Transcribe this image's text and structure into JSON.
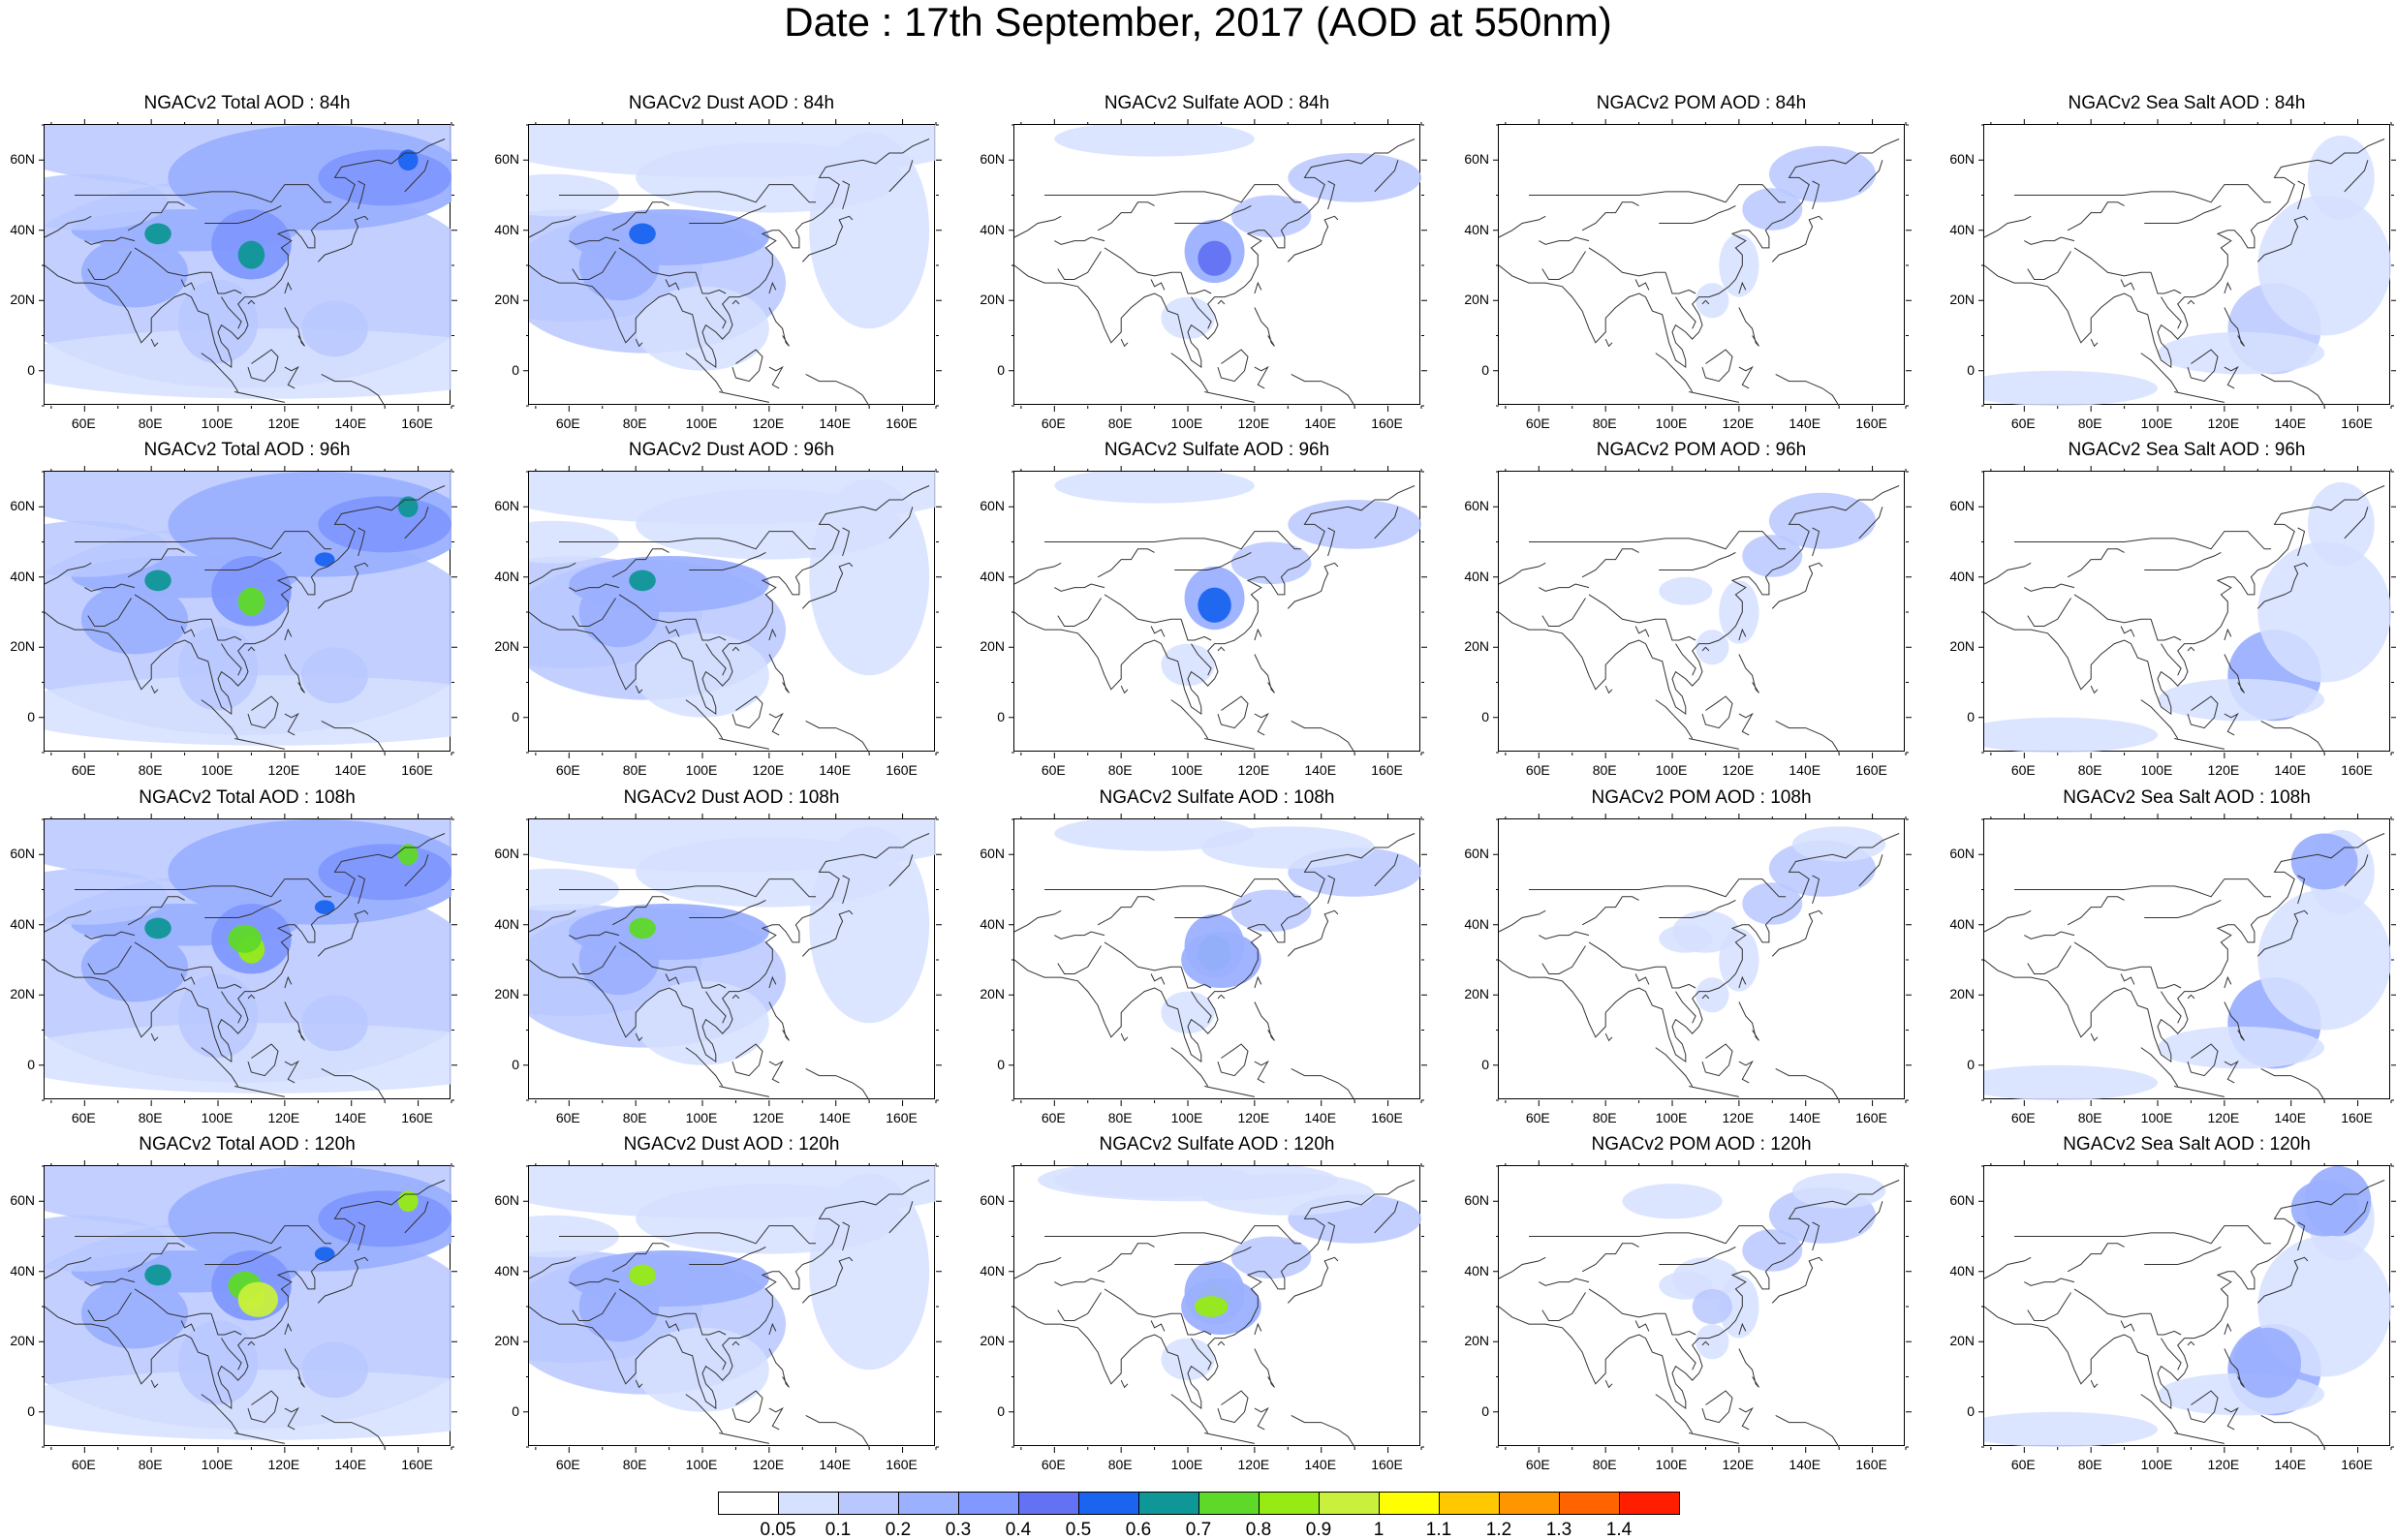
{
  "title": "Date : 17th September, 2017 (AOD at 550nm)",
  "panels": [
    [
      "NGACv2 Total AOD : 84h",
      "NGACv2 Dust AOD : 84h",
      "NGACv2 Sulfate AOD : 84h",
      "NGACv2 POM AOD : 84h",
      "NGACv2 Sea Salt AOD : 84h"
    ],
    [
      "NGACv2 Total AOD : 96h",
      "NGACv2 Dust AOD : 96h",
      "NGACv2 Sulfate AOD : 96h",
      "NGACv2 POM AOD : 96h",
      "NGACv2 Sea Salt AOD : 96h"
    ],
    [
      "NGACv2 Total AOD : 108h",
      "NGACv2 Dust AOD : 108h",
      "NGACv2 Sulfate AOD : 108h",
      "NGACv2 POM AOD : 108h",
      "NGACv2 Sea Salt AOD : 108h"
    ],
    [
      "NGACv2 Total AOD : 120h",
      "NGACv2 Dust AOD : 120h",
      "NGACv2 Sulfate AOD : 120h",
      "NGACv2 POM AOD : 120h",
      "NGACv2 Sea Salt  AOD : 120h"
    ]
  ],
  "axes": {
    "lon_range": [
      48,
      170
    ],
    "lat_range": [
      -10,
      70
    ],
    "x_tick_labels": [
      "60E",
      "80E",
      "100E",
      "120E",
      "140E",
      "160E"
    ],
    "x_tick_values": [
      60,
      80,
      100,
      120,
      140,
      160
    ],
    "y_tick_labels": [
      "0",
      "20N",
      "40N",
      "60N"
    ],
    "y_tick_values": [
      0,
      20,
      40,
      60
    ]
  },
  "colorbar": {
    "labels": [
      "0.05",
      "0.1",
      "0.2",
      "0.3",
      "0.4",
      "0.5",
      "0.6",
      "0.7",
      "0.8",
      "0.9",
      "1",
      "1.1",
      "1.2",
      "1.3",
      "1.4"
    ],
    "colors": [
      "#ffffff",
      "#d6e0ff",
      "#b8c8ff",
      "#9bb0ff",
      "#8098ff",
      "#6272f2",
      "#1a64f0",
      "#0f9696",
      "#5ed92a",
      "#96eb14",
      "#c8f03c",
      "#ffff00",
      "#ffc800",
      "#ff9600",
      "#ff6400",
      "#ff1e00"
    ]
  }
}
